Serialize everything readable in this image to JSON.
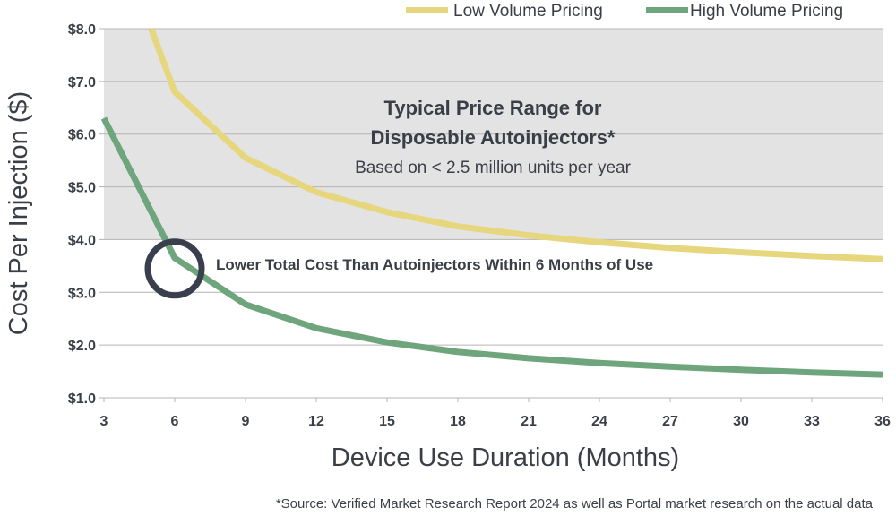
{
  "chart_data": {
    "type": "line",
    "x": [
      3,
      6,
      9,
      12,
      15,
      18,
      21,
      24,
      27,
      30,
      33,
      36
    ],
    "xlim": [
      3,
      36
    ],
    "ylim": [
      1.0,
      8.0
    ],
    "xticks": [
      "3",
      "6",
      "9",
      "12",
      "15",
      "18",
      "21",
      "24",
      "27",
      "30",
      "33",
      "36"
    ],
    "yticks": [
      "$1.0",
      "$2.0",
      "$3.0",
      "$4.0",
      "$5.0",
      "$6.0",
      "$7.0",
      "$8.0"
    ],
    "ytick_values": [
      1,
      2,
      3,
      4,
      5,
      6,
      7,
      8
    ],
    "xlabel": "Device Use Duration (Months)",
    "ylabel": "Cost Per Injection ($)",
    "grid": "horizontal",
    "legend_position": "top-right",
    "series": [
      {
        "name": "Low Volume Pricing",
        "color": "#e6d77e",
        "points": [
          [
            5,
            8.0
          ],
          [
            6,
            6.8
          ],
          [
            9,
            5.55
          ],
          [
            12,
            4.9
          ],
          [
            15,
            4.52
          ],
          [
            18,
            4.25
          ],
          [
            21,
            4.08
          ],
          [
            24,
            3.95
          ],
          [
            27,
            3.84
          ],
          [
            30,
            3.76
          ],
          [
            33,
            3.69
          ],
          [
            36,
            3.63
          ]
        ]
      },
      {
        "name": "High Volume Pricing",
        "color": "#6fa57c",
        "points": [
          [
            3,
            6.3
          ],
          [
            6,
            3.65
          ],
          [
            9,
            2.77
          ],
          [
            12,
            2.32
          ],
          [
            15,
            2.05
          ],
          [
            18,
            1.87
          ],
          [
            21,
            1.75
          ],
          [
            24,
            1.66
          ],
          [
            27,
            1.59
          ],
          [
            30,
            1.53
          ],
          [
            33,
            1.48
          ],
          [
            36,
            1.44
          ]
        ]
      }
    ],
    "shaded_region": {
      "y_from": 4.0,
      "y_to": 8.0,
      "color": "#e3e3e3"
    },
    "annotations": {
      "range_title_line1": "Typical Price Range for",
      "range_title_line2": "Disposable Autoinjectors*",
      "range_subtitle": "Based on < 2.5 million units per year",
      "callout": "Lower Total Cost Than Autoinjectors Within 6 Months of Use",
      "circle_at": [
        6,
        3.45
      ]
    }
  },
  "footnote": "*Source: Verified Market Research Report 2024 as well as Portal market research on the actual data"
}
